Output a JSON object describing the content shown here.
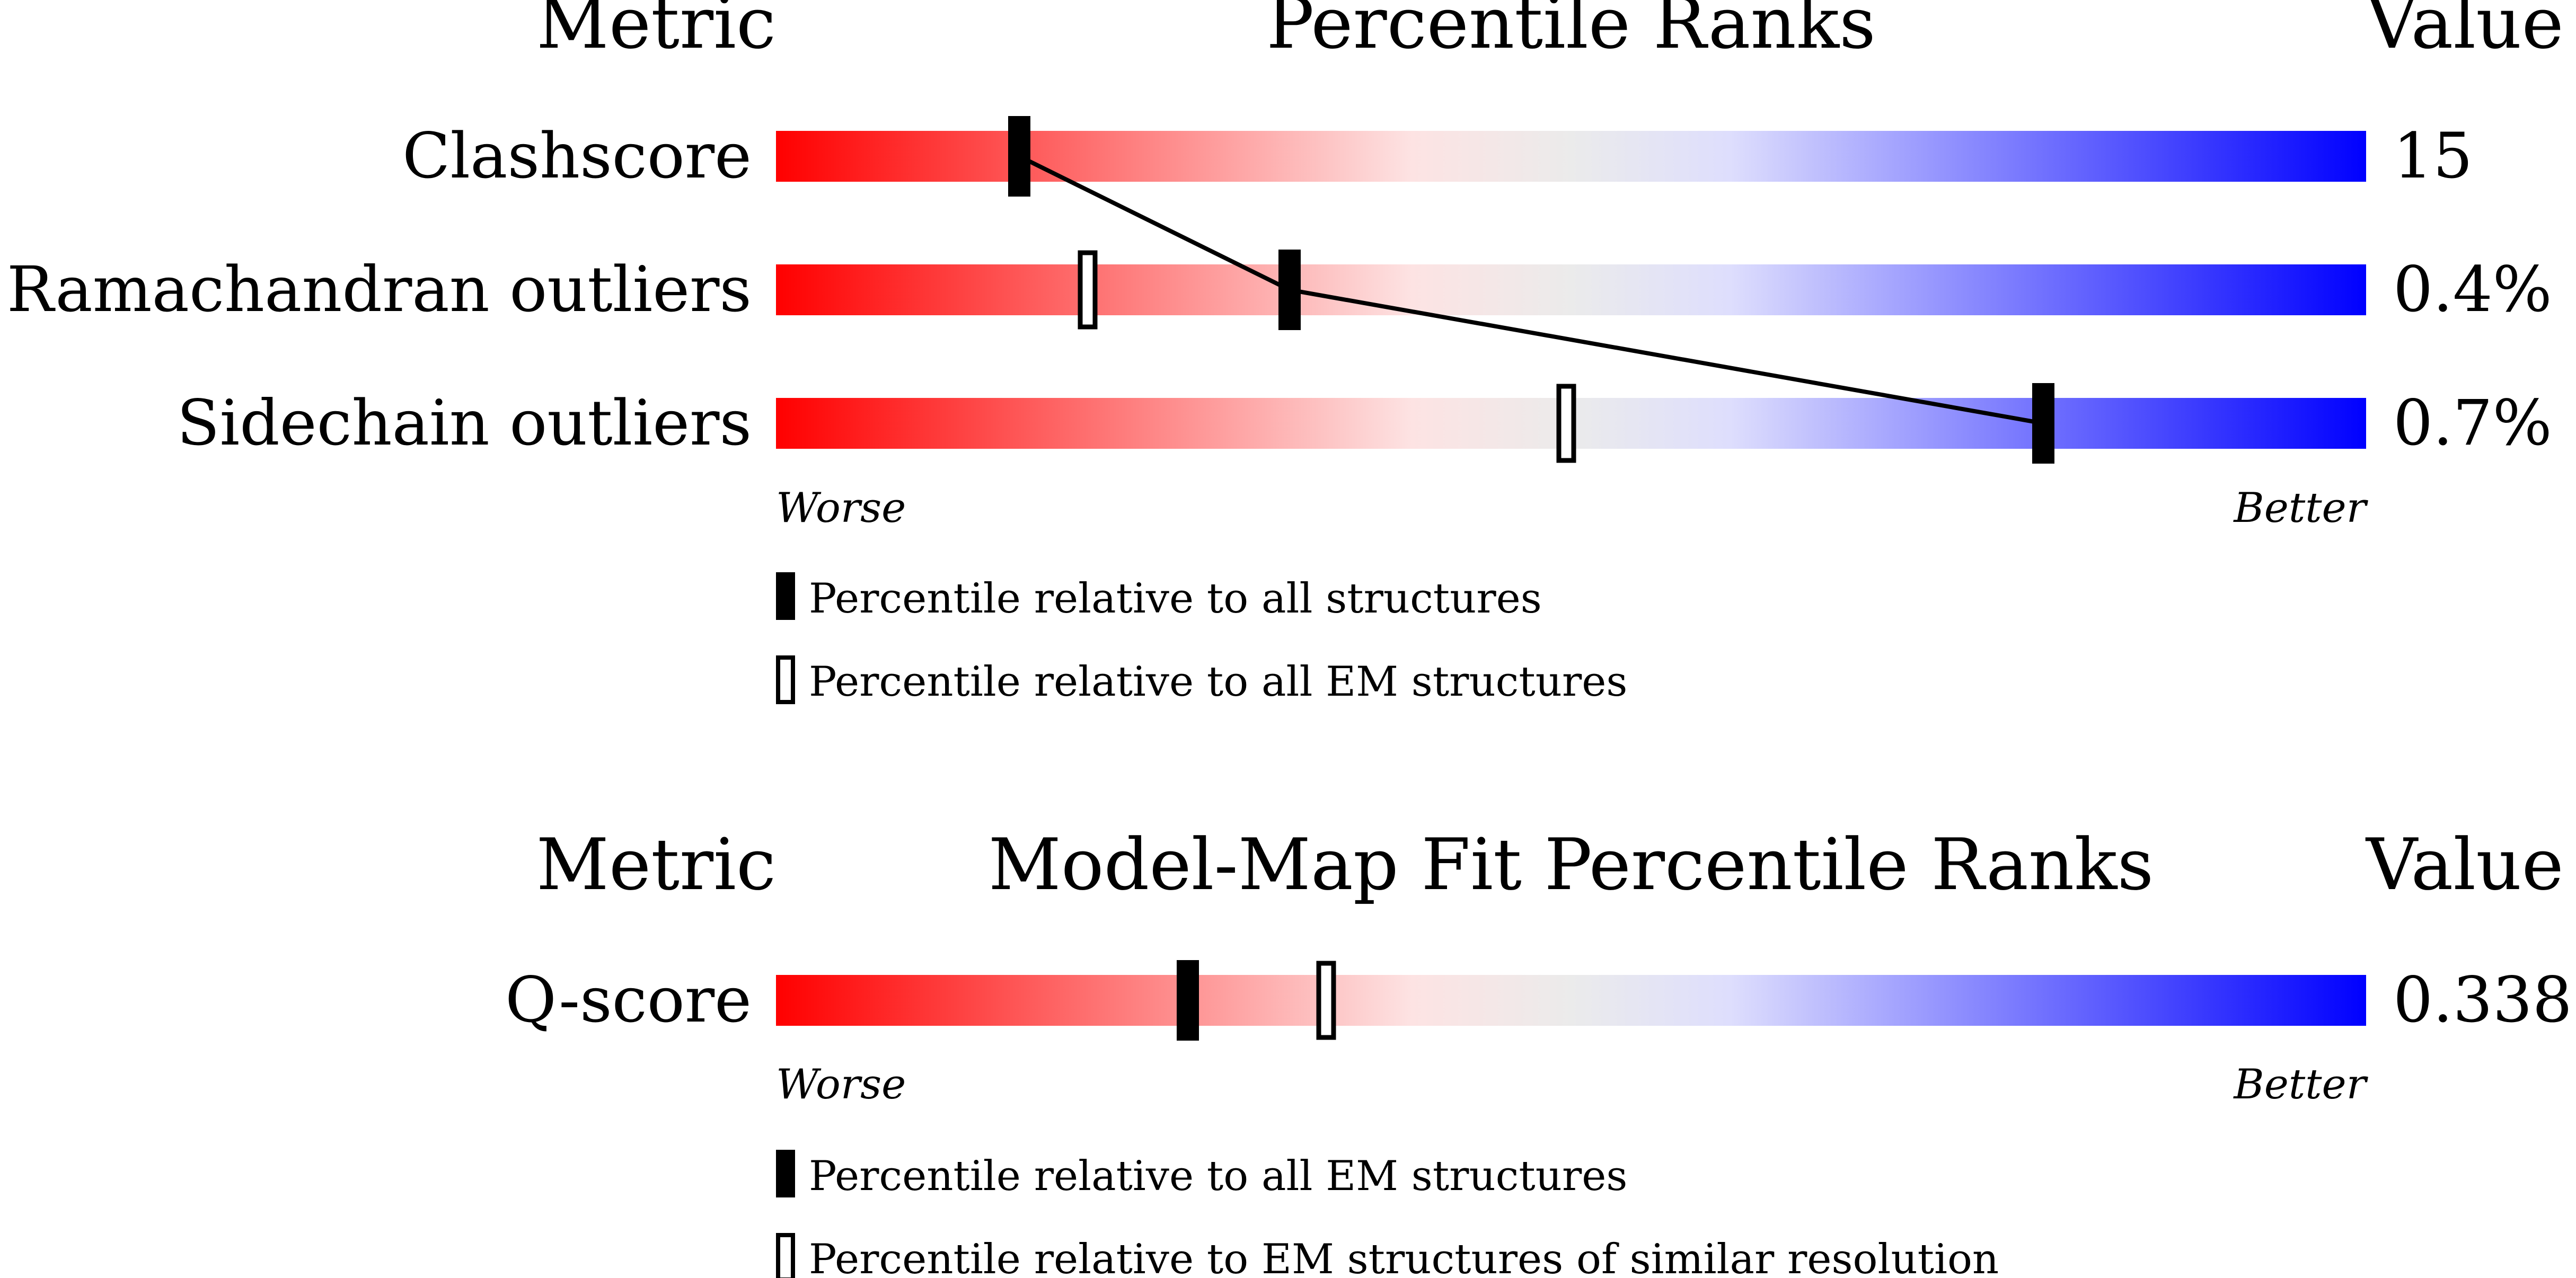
{
  "chart_data": [
    {
      "type": "percentile-ranks",
      "header": {
        "metric": "Metric",
        "title": "Percentile Ranks",
        "value": "Value"
      },
      "scale": {
        "worse": "Worse",
        "better": "Better",
        "xlim": [
          0,
          100
        ]
      },
      "rows": [
        {
          "label": "Clashscore",
          "value": "15",
          "all_percentile": 15.3,
          "subset_percentile": null
        },
        {
          "label": "Ramachandran outliers",
          "value": "0.4%",
          "all_percentile": 32.3,
          "subset_percentile": 19.6
        },
        {
          "label": "Sidechain outliers",
          "value": "0.7%",
          "all_percentile": 79.7,
          "subset_percentile": 49.7
        }
      ],
      "connect_all_markers": true,
      "legend": [
        {
          "marker": "filled",
          "text": "Percentile relative to all structures"
        },
        {
          "marker": "open",
          "text": "Percentile relative to all EM structures"
        }
      ]
    },
    {
      "type": "percentile-ranks",
      "header": {
        "metric": "Metric",
        "title": "Model-Map Fit Percentile Ranks",
        "value": "Value"
      },
      "scale": {
        "worse": "Worse",
        "better": "Better",
        "xlim": [
          0,
          100
        ]
      },
      "rows": [
        {
          "label": "Q-score",
          "value": "0.338",
          "all_percentile": 25.9,
          "subset_percentile": 34.6
        }
      ],
      "connect_all_markers": false,
      "legend": [
        {
          "marker": "filled",
          "text": "Percentile relative to all EM structures"
        },
        {
          "marker": "open",
          "text": "Percentile relative to EM structures of similar resolution"
        }
      ]
    }
  ],
  "colors": {
    "worse": "#ff0000",
    "mid_warm": "#fde3e3",
    "neutral": "#ebebeb",
    "mid_cool": "#dedefd",
    "better": "#0000ff",
    "marker": "#000000",
    "text": "#000000"
  }
}
